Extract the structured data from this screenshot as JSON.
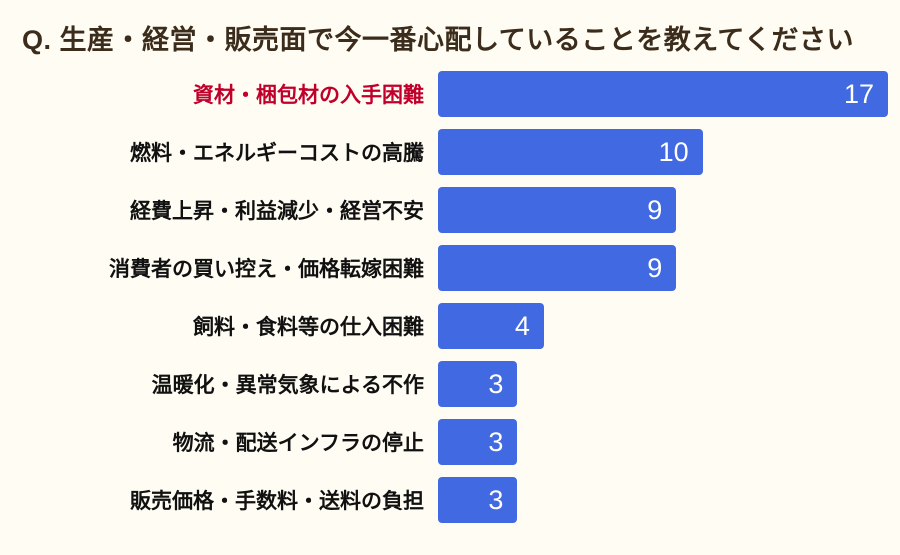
{
  "page": {
    "background_color": "#fffdf3"
  },
  "title": {
    "text": "Q. 生産・経営・販売面で今一番心配していることを教えてください",
    "color": "#3c2c1c"
  },
  "chart_data": {
    "type": "bar",
    "orientation": "horizontal",
    "title": "Q. 生産・経営・販売面で今一番心配していることを教えてください",
    "categories": [
      "資材・梱包材の入手困難",
      "燃料・エネルギーコストの高騰",
      "経費上昇・利益減少・経営不安",
      "消費者の買い控え・価格転嫁困難",
      "飼料・食料等の仕入困難",
      "温暖化・異常気象による不作",
      "物流・配送インフラの停止",
      "販売価格・手数料・送料の負担"
    ],
    "values": [
      17,
      10,
      9,
      9,
      4,
      3,
      3,
      3
    ],
    "value_labels": [
      "17",
      "10",
      "9",
      "9",
      "4",
      "3",
      "3",
      "3"
    ],
    "xlim": [
      0,
      17
    ],
    "bar_color": "#4169e1",
    "value_text_color": "#ffffff",
    "label_color": "#111111",
    "highlight_index": 0,
    "highlight_label_color": "#c0002b",
    "legend": false,
    "grid": false
  }
}
